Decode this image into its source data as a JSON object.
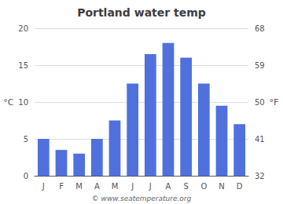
{
  "chart_data": {
    "type": "bar",
    "title": "Portland water temp",
    "categories": [
      "J",
      "F",
      "M",
      "A",
      "M",
      "J",
      "J",
      "A",
      "S",
      "O",
      "N",
      "D"
    ],
    "values": [
      5.0,
      3.5,
      3.0,
      5.0,
      7.5,
      12.5,
      16.5,
      18.0,
      16.0,
      12.5,
      9.5,
      7.0
    ],
    "ylim": [
      0,
      20
    ],
    "yticks": [
      0,
      5,
      10,
      15,
      20
    ],
    "ylabel": "°C",
    "y2lim": [
      32,
      68
    ],
    "y2ticks": [
      32,
      41,
      50,
      59,
      68
    ],
    "y2label": "°F",
    "grid": true,
    "annotations": [
      "© www.seatemperature.org"
    ]
  }
}
